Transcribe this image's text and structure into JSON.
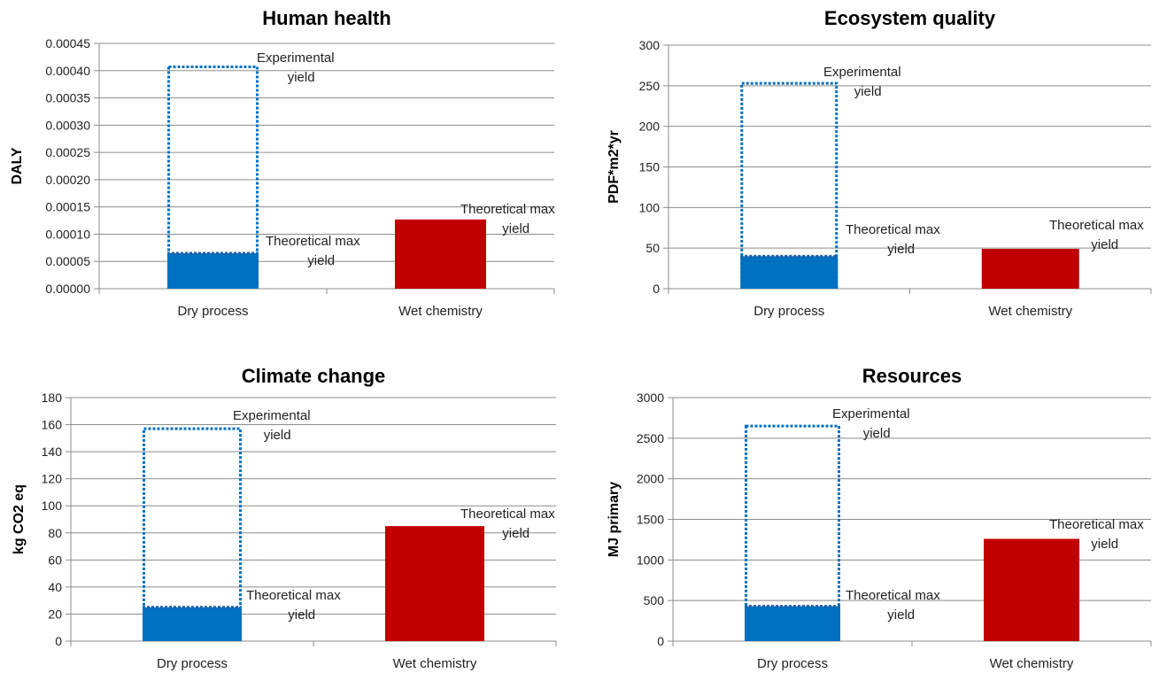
{
  "chart_data": [
    {
      "type": "bar",
      "title": "Human health",
      "ylabel": "DALY",
      "ylim": [
        0,
        0.00045
      ],
      "yticks": [
        "0.00000",
        "0.00005",
        "0.00010",
        "0.00015",
        "0.00020",
        "0.00025",
        "0.00030",
        "0.00035",
        "0.00040",
        "0.00045"
      ],
      "categories": [
        "Dry process",
        "Wet chemistry"
      ],
      "series": [
        {
          "values": [
            6.5e-05,
            0.000127
          ],
          "colors": [
            "#0070c0",
            "#c00000"
          ]
        },
        {
          "values": [
            0.000407,
            null
          ],
          "style": "dotted-outline",
          "color": "#0070c0"
        }
      ],
      "annotations": [
        {
          "lines": [
            "Experimental",
            "yield"
          ],
          "category": "Dry process",
          "series": "experimental"
        },
        {
          "lines": [
            "Theoretical max",
            "yield"
          ],
          "category": "Dry process",
          "series": "theoretical"
        },
        {
          "lines": [
            "Theoretical max",
            "yield"
          ],
          "category": "Wet chemistry",
          "series": "theoretical"
        }
      ],
      "grid": true
    },
    {
      "type": "bar",
      "title": "Ecosystem quality",
      "ylabel": "PDF*m2*yr",
      "ylim": [
        0,
        300
      ],
      "yticks": [
        "0",
        "50",
        "100",
        "150",
        "200",
        "250",
        "300"
      ],
      "categories": [
        "Dry process",
        "Wet chemistry"
      ],
      "series": [
        {
          "values": [
            40,
            49
          ],
          "colors": [
            "#0070c0",
            "#c00000"
          ]
        },
        {
          "values": [
            253,
            null
          ],
          "style": "dotted-outline",
          "color": "#0070c0"
        }
      ],
      "annotations": [
        {
          "lines": [
            "Experimental",
            "yield"
          ],
          "category": "Dry process",
          "series": "experimental"
        },
        {
          "lines": [
            "Theoretical max",
            "yield"
          ],
          "category": "Dry process",
          "series": "theoretical"
        },
        {
          "lines": [
            "Theoretical max",
            "yield"
          ],
          "category": "Wet chemistry",
          "series": "theoretical"
        }
      ],
      "grid": true
    },
    {
      "type": "bar",
      "title": "Climate change",
      "ylabel": "kg CO2 eq",
      "ylim": [
        0,
        180
      ],
      "yticks": [
        "0",
        "20",
        "40",
        "60",
        "80",
        "100",
        "120",
        "140",
        "160",
        "180"
      ],
      "categories": [
        "Dry process",
        "Wet chemistry"
      ],
      "series": [
        {
          "values": [
            25,
            85
          ],
          "colors": [
            "#0070c0",
            "#c00000"
          ]
        },
        {
          "values": [
            157,
            null
          ],
          "style": "dotted-outline",
          "color": "#0070c0"
        }
      ],
      "annotations": [
        {
          "lines": [
            "Experimental",
            "yield"
          ],
          "category": "Dry process",
          "series": "experimental"
        },
        {
          "lines": [
            "Theoretical max",
            "yield"
          ],
          "category": "Dry process",
          "series": "theoretical"
        },
        {
          "lines": [
            "Theoretical max",
            "yield"
          ],
          "category": "Wet chemistry",
          "series": "theoretical"
        }
      ],
      "grid": true
    },
    {
      "type": "bar",
      "title": "Resources",
      "ylabel": "MJ primary",
      "ylim": [
        0,
        3000
      ],
      "yticks": [
        "0",
        "500",
        "1000",
        "1500",
        "2000",
        "2500",
        "3000"
      ],
      "categories": [
        "Dry process",
        "Wet chemistry"
      ],
      "series": [
        {
          "values": [
            430,
            1260
          ],
          "colors": [
            "#0070c0",
            "#c00000"
          ]
        },
        {
          "values": [
            2650,
            null
          ],
          "style": "dotted-outline",
          "color": "#0070c0"
        }
      ],
      "annotations": [
        {
          "lines": [
            "Experimental",
            "yield"
          ],
          "category": "Dry process",
          "series": "experimental"
        },
        {
          "lines": [
            "Theoretical max",
            "yield"
          ],
          "category": "Dry process",
          "series": "theoretical"
        },
        {
          "lines": [
            "Theoretical max",
            "yield"
          ],
          "category": "Wet chemistry",
          "series": "theoretical"
        }
      ],
      "grid": true
    }
  ]
}
